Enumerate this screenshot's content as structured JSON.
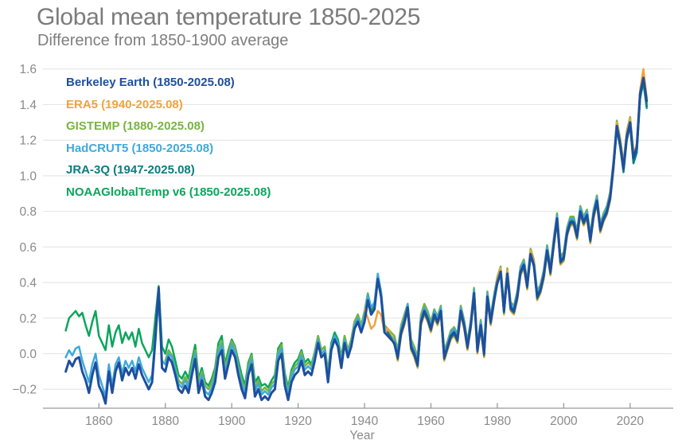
{
  "chart_data": {
    "type": "line",
    "title": "Global mean temperature 1850-2025",
    "subtitle": "Difference from 1850-1900 average",
    "xlabel": "Year",
    "ylabel": "",
    "xlim": [
      1847,
      2029
    ],
    "ylim": [
      -0.32,
      1.66
    ],
    "xticks": [
      1860,
      1880,
      1900,
      1920,
      1940,
      1960,
      1980,
      2000,
      2020
    ],
    "yticks": [
      1.6,
      1.4,
      1.2,
      1.0,
      0.8,
      0.6,
      0.4,
      0.2,
      0.0,
      -0.2
    ],
    "ytick_labels": [
      "1.6",
      "1.4",
      "1.2",
      "1.0",
      "0.8",
      "0.6",
      "0.4",
      "0.2",
      "0.0",
      "−0.2"
    ],
    "grid": "horizontal",
    "legend_position": "top-left-inside",
    "colors": {
      "background": "#ffffff",
      "title_text": "#7b7b7b",
      "axis_text": "#8a8a8a",
      "grid_line": "#e4e4e4",
      "axis_line": "#999999"
    },
    "series": [
      {
        "name": "Berkeley Earth",
        "label": "Berkeley Earth (1850-2025.08)",
        "color": "#1e4f9e",
        "start_year": 1850,
        "values": [
          -0.1,
          -0.04,
          -0.07,
          -0.03,
          -0.02,
          -0.1,
          -0.15,
          -0.22,
          -0.12,
          -0.05,
          -0.18,
          -0.22,
          -0.28,
          -0.1,
          -0.22,
          -0.1,
          -0.05,
          -0.15,
          -0.08,
          -0.12,
          -0.08,
          -0.14,
          -0.06,
          -0.12,
          -0.16,
          -0.2,
          -0.16,
          0.08,
          0.37,
          -0.08,
          -0.1,
          -0.02,
          -0.05,
          -0.12,
          -0.2,
          -0.22,
          -0.18,
          -0.22,
          -0.12,
          -0.03,
          -0.22,
          -0.15,
          -0.24,
          -0.26,
          -0.22,
          -0.16,
          -0.02,
          0.02,
          -0.14,
          -0.06,
          0.02,
          -0.02,
          -0.12,
          -0.2,
          -0.25,
          -0.12,
          -0.06,
          -0.24,
          -0.2,
          -0.26,
          -0.24,
          -0.26,
          -0.22,
          -0.2,
          -0.04,
          0.0,
          -0.18,
          -0.26,
          -0.16,
          -0.12,
          -0.1,
          -0.04,
          -0.12,
          -0.1,
          -0.12,
          -0.04,
          0.06,
          -0.02,
          0.0,
          -0.16,
          0.02,
          0.08,
          0.04,
          -0.08,
          0.06,
          -0.02,
          0.04,
          0.14,
          0.18,
          0.12,
          0.18,
          0.3,
          0.22,
          0.25,
          0.42,
          0.32,
          0.12,
          0.1,
          0.08,
          0.06,
          -0.02,
          0.12,
          0.18,
          0.26,
          0.04,
          0.0,
          -0.06,
          0.18,
          0.24,
          0.2,
          0.14,
          0.22,
          0.18,
          0.24,
          -0.02,
          0.04,
          0.1,
          0.12,
          0.08,
          0.24,
          0.16,
          0.04,
          0.16,
          0.34,
          0.02,
          0.16,
          0.0,
          0.32,
          0.18,
          0.3,
          0.4,
          0.46,
          0.24,
          0.45,
          0.26,
          0.24,
          0.32,
          0.46,
          0.5,
          0.38,
          0.56,
          0.5,
          0.32,
          0.36,
          0.44,
          0.58,
          0.46,
          0.62,
          0.76,
          0.52,
          0.54,
          0.68,
          0.74,
          0.74,
          0.66,
          0.8,
          0.74,
          0.78,
          0.64,
          0.78,
          0.86,
          0.7,
          0.76,
          0.8,
          0.88,
          1.06,
          1.28,
          1.18,
          1.04,
          1.22,
          1.3,
          1.1,
          1.16,
          1.46,
          1.55,
          1.42
        ]
      },
      {
        "name": "ERA5",
        "label": "ERA5 (1940-2025.08)",
        "color": "#f0a43c",
        "start_year": 1940,
        "values": [
          0.25,
          0.2,
          0.14,
          0.16,
          0.24,
          0.22,
          0.12,
          0.14,
          0.1,
          0.06,
          -0.04,
          0.1,
          0.16,
          0.24,
          0.02,
          -0.02,
          -0.08,
          0.16,
          0.22,
          0.18,
          0.12,
          0.2,
          0.16,
          0.22,
          -0.04,
          0.02,
          0.08,
          0.1,
          0.06,
          0.22,
          0.14,
          0.02,
          0.14,
          0.32,
          0.0,
          0.14,
          -0.02,
          0.3,
          0.16,
          0.28,
          0.42,
          0.48,
          0.22,
          0.47,
          0.24,
          0.22,
          0.3,
          0.44,
          0.48,
          0.36,
          0.58,
          0.52,
          0.3,
          0.34,
          0.42,
          0.56,
          0.44,
          0.6,
          0.74,
          0.5,
          0.52,
          0.66,
          0.72,
          0.72,
          0.64,
          0.78,
          0.72,
          0.76,
          0.62,
          0.76,
          0.84,
          0.68,
          0.74,
          0.78,
          0.86,
          1.04,
          1.3,
          1.2,
          1.06,
          1.24,
          1.32,
          1.12,
          1.18,
          1.48,
          1.6,
          1.44
        ]
      },
      {
        "name": "GISTEMP",
        "label": "GISTEMP (1880-2025.08)",
        "color": "#78b43f",
        "start_year": 1880,
        "values": [
          -0.04,
          0.02,
          -0.01,
          -0.08,
          -0.15,
          -0.17,
          -0.13,
          -0.17,
          -0.07,
          0.02,
          -0.16,
          -0.1,
          -0.18,
          -0.2,
          -0.16,
          -0.1,
          0.03,
          0.07,
          -0.08,
          -0.01,
          0.07,
          0.03,
          -0.07,
          -0.15,
          -0.2,
          -0.07,
          -0.01,
          -0.19,
          -0.15,
          -0.21,
          -0.19,
          -0.21,
          -0.17,
          -0.15,
          0.01,
          0.05,
          -0.13,
          -0.21,
          -0.11,
          -0.07,
          -0.05,
          0.01,
          -0.07,
          -0.05,
          -0.07,
          0.01,
          0.1,
          0.02,
          0.04,
          -0.11,
          0.04,
          0.1,
          0.06,
          -0.03,
          0.1,
          0.02,
          0.08,
          0.18,
          0.22,
          0.16,
          0.24,
          0.34,
          0.26,
          0.28,
          0.44,
          0.34,
          0.16,
          0.14,
          0.12,
          0.1,
          0.02,
          0.16,
          0.22,
          0.28,
          0.08,
          0.04,
          -0.02,
          0.22,
          0.28,
          0.24,
          0.18,
          0.25,
          0.21,
          0.27,
          0.02,
          0.07,
          0.13,
          0.15,
          0.11,
          0.27,
          0.19,
          0.07,
          0.19,
          0.37,
          0.05,
          0.19,
          0.03,
          0.35,
          0.21,
          0.33,
          0.43,
          0.49,
          0.27,
          0.48,
          0.29,
          0.27,
          0.35,
          0.49,
          0.53,
          0.41,
          0.59,
          0.53,
          0.35,
          0.39,
          0.47,
          0.61,
          0.49,
          0.65,
          0.79,
          0.55,
          0.57,
          0.71,
          0.77,
          0.77,
          0.69,
          0.83,
          0.77,
          0.81,
          0.67,
          0.81,
          0.89,
          0.73,
          0.79,
          0.83,
          0.91,
          1.09,
          1.31,
          1.21,
          1.07,
          1.25,
          1.33,
          1.13,
          1.17,
          1.47,
          1.56,
          1.41
        ]
      },
      {
        "name": "HadCRUT5",
        "label": "HadCRUT5 (1850-2025.08)",
        "color": "#3fa9dc",
        "start_year": 1850,
        "values": [
          -0.02,
          0.02,
          -0.01,
          0.03,
          0.04,
          -0.04,
          -0.1,
          -0.16,
          -0.06,
          0.0,
          -0.12,
          -0.18,
          -0.24,
          -0.06,
          -0.18,
          -0.06,
          -0.02,
          -0.11,
          -0.04,
          -0.08,
          -0.04,
          -0.1,
          -0.02,
          -0.08,
          -0.12,
          -0.16,
          -0.12,
          0.1,
          0.3,
          -0.04,
          -0.06,
          0.0,
          -0.02,
          -0.09,
          -0.17,
          -0.19,
          -0.15,
          -0.19,
          -0.09,
          0.0,
          -0.19,
          -0.12,
          -0.21,
          -0.23,
          -0.19,
          -0.13,
          0.01,
          0.05,
          -0.11,
          -0.03,
          0.05,
          0.01,
          -0.09,
          -0.17,
          -0.22,
          -0.09,
          -0.03,
          -0.21,
          -0.17,
          -0.23,
          -0.21,
          -0.23,
          -0.19,
          -0.17,
          -0.01,
          0.03,
          -0.15,
          -0.23,
          -0.13,
          -0.09,
          -0.07,
          -0.01,
          -0.09,
          -0.07,
          -0.09,
          -0.01,
          0.08,
          0.0,
          0.02,
          -0.13,
          0.04,
          0.1,
          0.06,
          -0.05,
          0.08,
          0.0,
          0.06,
          0.16,
          0.2,
          0.14,
          0.22,
          0.33,
          0.26,
          0.29,
          0.45,
          0.35,
          0.14,
          0.12,
          0.1,
          0.08,
          0.0,
          0.14,
          0.2,
          0.28,
          0.06,
          0.02,
          -0.04,
          0.2,
          0.26,
          0.22,
          0.16,
          0.24,
          0.2,
          0.26,
          0.0,
          0.06,
          0.12,
          0.14,
          0.1,
          0.26,
          0.18,
          0.06,
          0.18,
          0.36,
          0.04,
          0.18,
          0.02,
          0.34,
          0.2,
          0.32,
          0.42,
          0.48,
          0.26,
          0.47,
          0.28,
          0.26,
          0.34,
          0.48,
          0.52,
          0.4,
          0.58,
          0.52,
          0.34,
          0.38,
          0.46,
          0.6,
          0.48,
          0.64,
          0.78,
          0.54,
          0.56,
          0.7,
          0.76,
          0.76,
          0.68,
          0.82,
          0.76,
          0.8,
          0.66,
          0.8,
          0.88,
          0.72,
          0.78,
          0.82,
          0.9,
          1.08,
          1.3,
          1.2,
          1.06,
          1.24,
          1.32,
          1.12,
          1.14,
          1.45,
          1.53,
          1.4
        ]
      },
      {
        "name": "JRA-3Q",
        "label": "JRA-3Q (1947-2025.08)",
        "color": "#097d7f",
        "start_year": 1947,
        "values": [
          0.12,
          0.09,
          0.05,
          -0.03,
          0.11,
          0.17,
          0.25,
          0.03,
          -0.01,
          -0.07,
          0.17,
          0.23,
          0.19,
          0.13,
          0.21,
          0.17,
          0.23,
          -0.03,
          0.03,
          0.09,
          0.11,
          0.07,
          0.23,
          0.15,
          0.03,
          0.15,
          0.33,
          0.01,
          0.15,
          -0.01,
          0.31,
          0.17,
          0.29,
          0.39,
          0.45,
          0.23,
          0.44,
          0.25,
          0.23,
          0.31,
          0.45,
          0.49,
          0.37,
          0.55,
          0.49,
          0.31,
          0.35,
          0.43,
          0.57,
          0.45,
          0.61,
          0.75,
          0.51,
          0.53,
          0.67,
          0.73,
          0.73,
          0.65,
          0.79,
          0.73,
          0.77,
          0.63,
          0.77,
          0.85,
          0.69,
          0.75,
          0.79,
          0.87,
          1.05,
          1.26,
          1.16,
          1.02,
          1.2,
          1.28,
          1.07,
          1.13,
          1.43,
          1.54,
          1.39
        ]
      },
      {
        "name": "NOAAGlobalTemp v6",
        "label": "NOAAGlobalTemp v6 (1850-2025.08)",
        "color": "#0ba55c",
        "start_year": 1850,
        "values": [
          0.13,
          0.2,
          0.22,
          0.24,
          0.21,
          0.23,
          0.16,
          0.1,
          0.18,
          0.24,
          0.1,
          0.06,
          0.02,
          0.16,
          0.04,
          0.12,
          0.16,
          0.06,
          0.12,
          0.08,
          0.12,
          0.04,
          0.14,
          0.06,
          0.02,
          -0.02,
          0.02,
          0.2,
          0.38,
          0.04,
          0.0,
          0.08,
          0.04,
          -0.04,
          -0.12,
          -0.14,
          -0.1,
          -0.14,
          -0.04,
          0.05,
          -0.14,
          -0.08,
          -0.16,
          -0.18,
          -0.14,
          -0.08,
          0.06,
          0.1,
          -0.06,
          0.02,
          0.08,
          0.04,
          -0.04,
          -0.12,
          -0.18,
          -0.05,
          0.0,
          -0.16,
          -0.13,
          -0.18,
          -0.17,
          -0.19,
          -0.15,
          -0.12,
          0.03,
          0.06,
          -0.11,
          -0.19,
          -0.09,
          -0.05,
          -0.03,
          0.02,
          -0.05,
          -0.03,
          -0.06,
          0.01,
          0.1,
          0.02,
          0.04,
          -0.1,
          0.06,
          0.12,
          0.08,
          -0.02,
          0.1,
          0.02,
          0.08,
          0.18,
          0.22,
          0.16,
          0.22,
          0.32,
          0.24,
          0.27,
          0.43,
          0.33,
          0.14,
          0.12,
          0.1,
          0.08,
          0.0,
          0.14,
          0.2,
          0.27,
          0.06,
          0.02,
          -0.04,
          0.2,
          0.26,
          0.21,
          0.16,
          0.23,
          0.19,
          0.25,
          0.0,
          0.05,
          0.11,
          0.13,
          0.09,
          0.25,
          0.17,
          0.05,
          0.17,
          0.35,
          0.03,
          0.17,
          0.01,
          0.33,
          0.19,
          0.31,
          0.41,
          0.47,
          0.25,
          0.46,
          0.27,
          0.25,
          0.33,
          0.47,
          0.51,
          0.39,
          0.57,
          0.51,
          0.33,
          0.37,
          0.45,
          0.59,
          0.47,
          0.63,
          0.77,
          0.53,
          0.55,
          0.69,
          0.75,
          0.75,
          0.67,
          0.81,
          0.75,
          0.79,
          0.65,
          0.79,
          0.87,
          0.71,
          0.77,
          0.81,
          0.89,
          1.07,
          1.27,
          1.17,
          1.03,
          1.21,
          1.29,
          1.08,
          1.14,
          1.44,
          1.52,
          1.38
        ]
      }
    ]
  }
}
